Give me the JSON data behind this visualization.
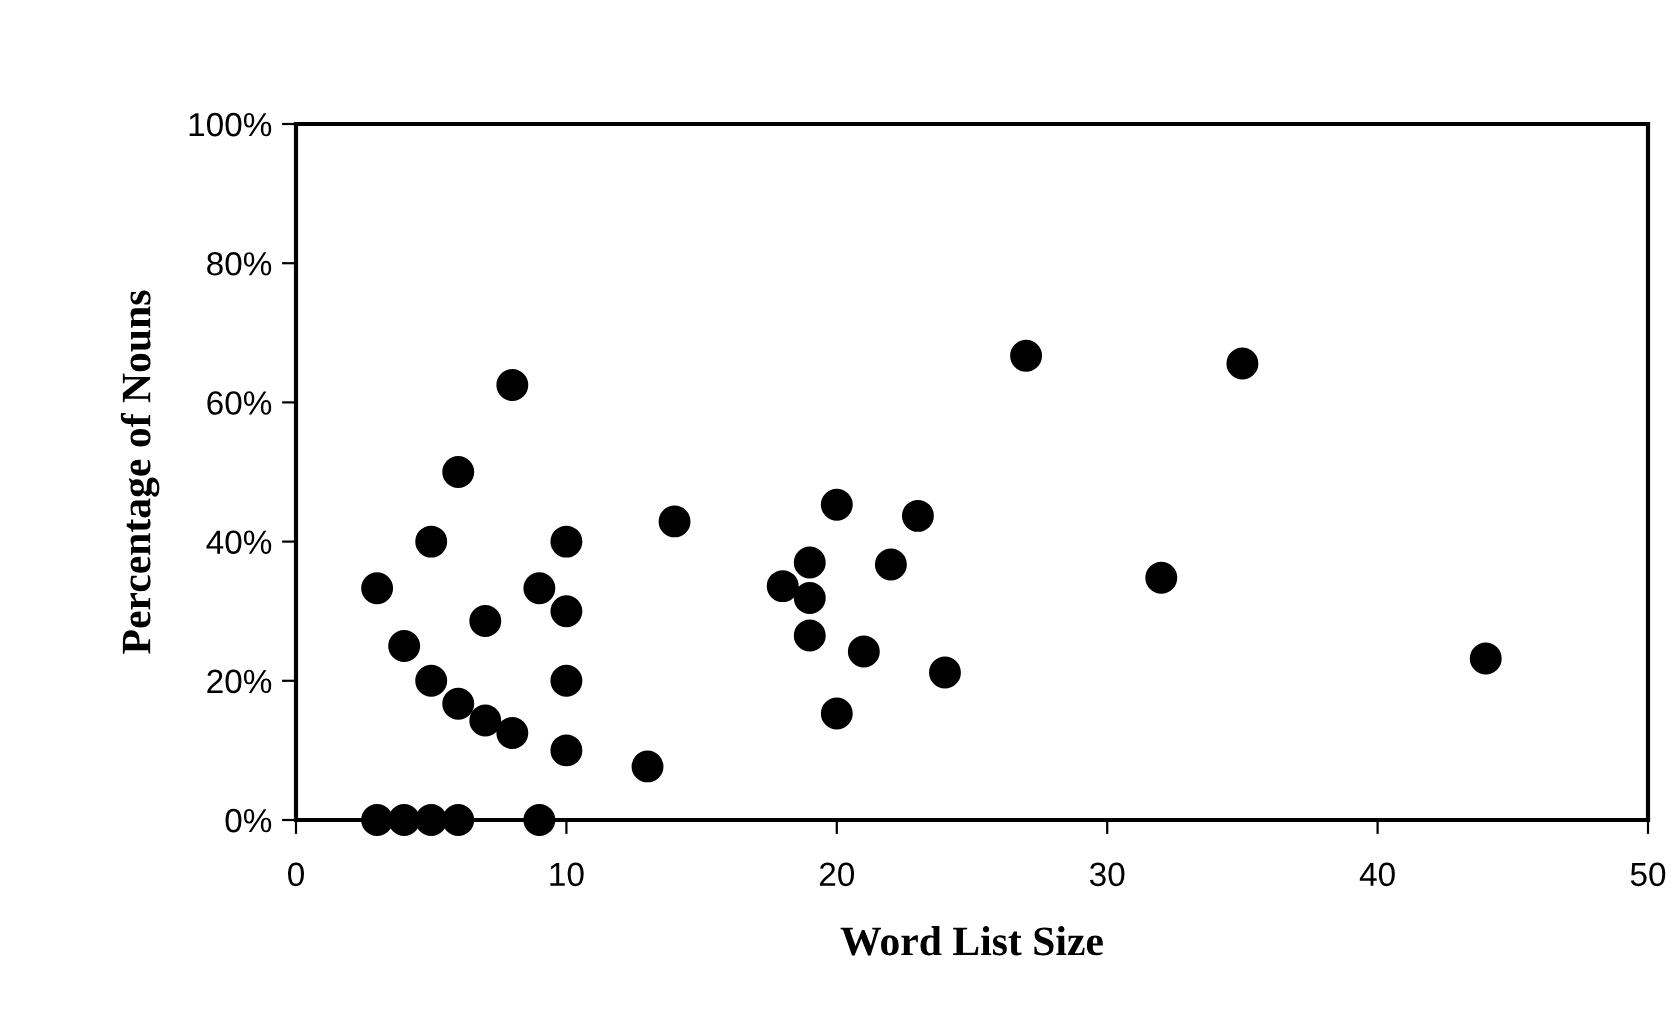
{
  "chart_data": {
    "type": "scatter",
    "xlabel": "Word List Size",
    "ylabel": "Percentage of Nouns",
    "series": [
      {
        "color": "#000000",
        "x": [
          3,
          4,
          5,
          6,
          9,
          3,
          4,
          5,
          5,
          6,
          6,
          7,
          7,
          8,
          8,
          9,
          10,
          10,
          10,
          10,
          13,
          14,
          27,
          35,
          20,
          23,
          19,
          22,
          18,
          19,
          32,
          19,
          21,
          24,
          44,
          20
        ],
        "values": [
          0,
          0,
          0,
          0,
          0,
          33.3,
          25,
          40,
          20,
          50,
          16.7,
          28.6,
          14.3,
          62.5,
          12.5,
          33.3,
          40,
          30,
          20,
          10,
          7.7,
          42.9,
          66.7,
          65.6,
          45.3,
          43.7,
          37,
          36.7,
          33.6,
          31.9,
          34.8,
          26.5,
          24.2,
          21.2,
          23.2,
          15.3
        ]
      }
    ],
    "marker": "circle",
    "grid": false,
    "xlim": [
      0,
      50
    ],
    "xticks": [
      0,
      10,
      20,
      30,
      40,
      50
    ],
    "ylim": [
      0,
      100
    ],
    "yticks": [
      {
        "value": 0,
        "label": "0%"
      },
      {
        "value": 20,
        "label": "20%"
      },
      {
        "value": 40,
        "label": "40%"
      },
      {
        "value": 60,
        "label": "60%"
      },
      {
        "value": 80,
        "label": "80%"
      },
      {
        "value": 100,
        "label": "100%"
      }
    ]
  }
}
